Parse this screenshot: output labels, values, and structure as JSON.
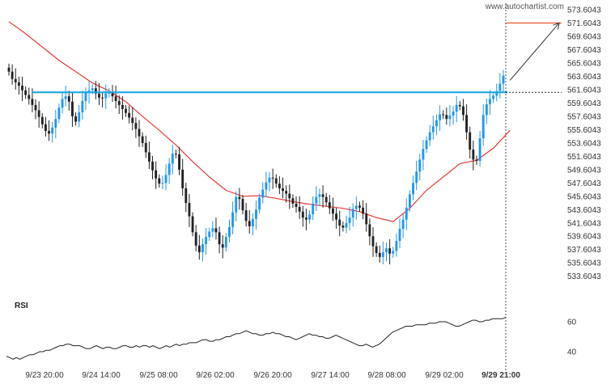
{
  "watermark": "www.autochartist.com",
  "chart_data": [
    {
      "type": "candlestick",
      "title": "",
      "y_ticks": [
        "573.6043",
        "571.6043",
        "569.6043",
        "567.6043",
        "565.6043",
        "563.6043",
        "561.6043",
        "559.6043",
        "557.6043",
        "555.6043",
        "553.6043",
        "551.6043",
        "549.6043",
        "547.6043",
        "545.6043",
        "543.6043",
        "541.6043",
        "539.6043",
        "537.6043",
        "535.6043",
        "533.6043"
      ],
      "ylim": [
        532.6,
        574.2
      ],
      "x_ticks": [
        "9/23 20:00",
        "9/24 14:00",
        "9/25 08:00",
        "9/26 02:00",
        "9/26 20:00",
        "9/27 14:00",
        "9/28 08:00",
        "9/29 02:00",
        "9/29 21:00"
      ],
      "x_ticks_bold": [
        false,
        false,
        false,
        false,
        false,
        false,
        false,
        false,
        true
      ],
      "closes": [
        564.3,
        563.2,
        562.7,
        562.2,
        561.5,
        560.8,
        560.2,
        559.3,
        558.5,
        557.5,
        556.4,
        555.4,
        555.0,
        555.9,
        557.2,
        558.9,
        560.2,
        560.6,
        559.8,
        557.6,
        556.8,
        558.2,
        559.9,
        561.1,
        561.5,
        561.8,
        561.0,
        560.4,
        560.3,
        561.0,
        561.2,
        560.6,
        559.9,
        559.3,
        558.7,
        558.1,
        557.4,
        556.6,
        555.7,
        554.6,
        553.6,
        552.2,
        550.8,
        549.5,
        548.3,
        547.5,
        547.6,
        548.8,
        550.5,
        552.0,
        551.9,
        549.6,
        546.8,
        544.6,
        542.6,
        540.2,
        538.2,
        537.2,
        538.4,
        539.5,
        540.3,
        540.8,
        540.2,
        538.4,
        537.9,
        539.5,
        541.0,
        543.2,
        545.5,
        545.2,
        543.5,
        541.9,
        541.1,
        542.2,
        543.6,
        545.4,
        546.6,
        547.7,
        548.4,
        548.3,
        547.5,
        546.8,
        546.4,
        546.0,
        545.3,
        544.5,
        544.0,
        543.3,
        542.4,
        542.1,
        542.9,
        544.5,
        545.5,
        545.9,
        545.5,
        544.7,
        543.8,
        543.0,
        542.1,
        541.2,
        540.9,
        541.6,
        542.4,
        543.7,
        544.2,
        543.9,
        543.0,
        541.4,
        539.6,
        538.1,
        537.1,
        536.5,
        537.2,
        537.8,
        537.0,
        537.4,
        538.9,
        540.7,
        542.1,
        543.9,
        545.9,
        547.6,
        549.3,
        551.1,
        552.7,
        554.0,
        555.2,
        556.1,
        557.0,
        557.9,
        557.8,
        557.2,
        557.7,
        558.3,
        559.3,
        559.1,
        557.8,
        555.2,
        552.6,
        551.1,
        550.9,
        554.3,
        557.8,
        559.4,
        560.2,
        560.7,
        561.4,
        562.5,
        563.7
      ],
      "ma": [
        {
          "i": 0,
          "v": 571.8
        },
        {
          "i": 5,
          "v": 570.0
        },
        {
          "i": 10,
          "v": 568.0
        },
        {
          "i": 15,
          "v": 566.0
        },
        {
          "i": 20,
          "v": 564.3
        },
        {
          "i": 25,
          "v": 562.6
        },
        {
          "i": 30,
          "v": 561.4
        },
        {
          "i": 35,
          "v": 559.8
        },
        {
          "i": 40,
          "v": 557.6
        },
        {
          "i": 45,
          "v": 555.5
        },
        {
          "i": 50,
          "v": 553.3
        },
        {
          "i": 55,
          "v": 550.8
        },
        {
          "i": 60,
          "v": 548.5
        },
        {
          "i": 65,
          "v": 546.5
        },
        {
          "i": 70,
          "v": 545.6
        },
        {
          "i": 75,
          "v": 545.7
        },
        {
          "i": 80,
          "v": 545.3
        },
        {
          "i": 85,
          "v": 544.8
        },
        {
          "i": 90,
          "v": 544.4
        },
        {
          "i": 95,
          "v": 544.1
        },
        {
          "i": 100,
          "v": 543.8
        },
        {
          "i": 105,
          "v": 543.3
        },
        {
          "i": 110,
          "v": 542.4
        },
        {
          "i": 115,
          "v": 541.8
        },
        {
          "i": 120,
          "v": 543.8
        },
        {
          "i": 125,
          "v": 546.5
        },
        {
          "i": 130,
          "v": 548.5
        },
        {
          "i": 135,
          "v": 550.5
        },
        {
          "i": 140,
          "v": 551.0
        },
        {
          "i": 145,
          "v": 552.8
        },
        {
          "i": 150,
          "v": 555.5
        }
      ],
      "support_level": 561.2,
      "support_start_index": 7,
      "projection": {
        "from_index": 150,
        "from_value": 563.0,
        "to_value": 571.6
      },
      "target_level": 571.6,
      "current_level": 561.2,
      "colors": {
        "up": "#2196F3",
        "down": "#222222",
        "ma": "#e53935",
        "support": "#1ea7e1",
        "target": "#e64a19",
        "arrow": "#333333"
      }
    },
    {
      "type": "line",
      "label": "RSI",
      "y_ticks": [
        "60",
        "40"
      ],
      "ylim": [
        33,
        67
      ],
      "values": [
        37,
        36,
        35,
        36,
        35,
        36,
        37,
        38,
        38,
        39,
        40,
        40,
        41,
        41,
        42,
        43,
        44,
        44,
        45,
        45,
        44,
        44,
        44,
        43,
        42,
        42,
        43,
        44,
        43,
        42,
        43,
        43,
        42,
        42,
        43,
        44,
        44,
        43,
        43,
        44,
        43,
        44,
        44,
        43,
        44,
        43,
        42,
        43,
        44,
        43,
        44,
        45,
        44,
        45,
        45,
        46,
        46,
        46,
        47,
        48,
        48,
        47,
        47,
        48,
        48,
        49,
        50,
        50,
        51,
        52,
        52,
        53,
        54,
        53,
        52,
        52,
        51,
        51,
        52,
        52,
        53,
        52,
        52,
        51,
        50,
        50,
        49,
        48,
        49,
        50,
        51,
        52,
        51,
        51,
        50,
        50,
        49,
        49,
        50,
        51,
        50,
        49,
        48,
        47,
        46,
        45,
        44,
        44,
        45,
        44,
        43,
        44,
        45,
        47,
        49,
        51,
        53,
        54,
        55,
        56,
        57,
        57,
        57,
        58,
        58,
        58,
        58,
        59,
        59,
        59,
        60,
        60,
        60,
        59,
        58,
        57,
        57,
        58,
        59,
        60,
        61,
        61,
        60,
        60,
        61,
        61,
        62,
        62,
        62,
        62,
        63
      ],
      "color": "#222222"
    }
  ]
}
